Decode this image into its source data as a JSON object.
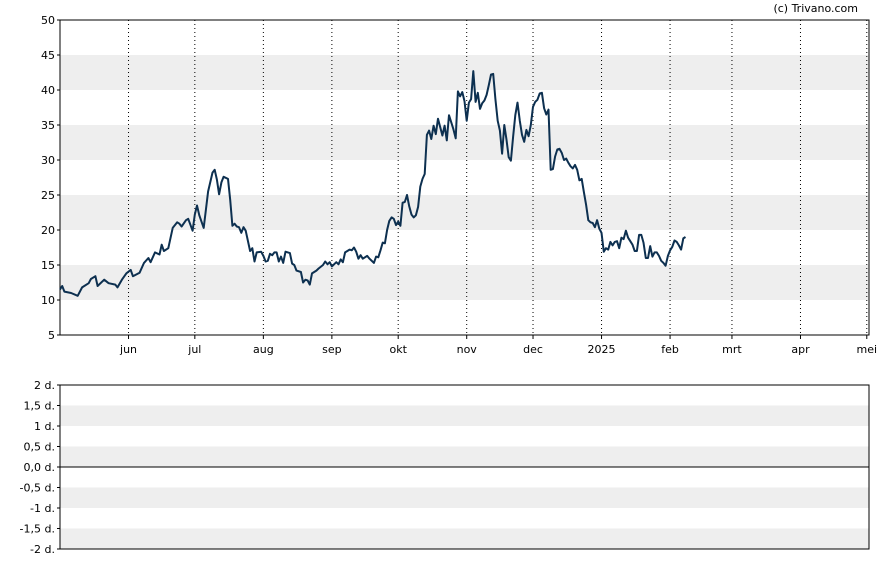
{
  "credit": "(c) Trivano.com",
  "chart_data": [
    {
      "type": "line",
      "title": "",
      "xlabel": "",
      "ylabel": "",
      "ylim": [
        5,
        50
      ],
      "yticks": [
        "5",
        "10",
        "15",
        "20",
        "25",
        "30",
        "35",
        "40",
        "45",
        "50"
      ],
      "xticks": [
        "jun",
        "jul",
        "aug",
        "sep",
        "okt",
        "nov",
        "dec",
        "2025",
        "feb",
        "mrt",
        "apr",
        "mei"
      ],
      "xlim": [
        0,
        366
      ],
      "xtick_positions": [
        31,
        61,
        92,
        123,
        153,
        184,
        214,
        245,
        276,
        304,
        335,
        365
      ],
      "grid": "alternating horizontal bands, dotted vertical month lines",
      "line_color": "#0d3050",
      "series": [
        {
          "values": [
            [
              0,
              11.5
            ],
            [
              1,
              12.0
            ],
            [
              2,
              11.2
            ],
            [
              5,
              11.0
            ],
            [
              8,
              10.6
            ],
            [
              10,
              11.8
            ],
            [
              13,
              12.4
            ],
            [
              14,
              13.0
            ],
            [
              16,
              13.4
            ],
            [
              17,
              12.0
            ],
            [
              20,
              12.9
            ],
            [
              22,
              12.4
            ],
            [
              25,
              12.2
            ],
            [
              26,
              11.8
            ],
            [
              28,
              12.9
            ],
            [
              30,
              13.8
            ],
            [
              32,
              14.3
            ],
            [
              33,
              13.4
            ],
            [
              36,
              13.9
            ],
            [
              38,
              15.3
            ],
            [
              40,
              16.0
            ],
            [
              41,
              15.4
            ],
            [
              43,
              16.8
            ],
            [
              45,
              16.5
            ],
            [
              46,
              17.9
            ],
            [
              47,
              17.0
            ],
            [
              49,
              17.4
            ],
            [
              51,
              20.3
            ],
            [
              53,
              21.1
            ],
            [
              54,
              20.9
            ],
            [
              55,
              20.5
            ],
            [
              57,
              21.4
            ],
            [
              58,
              21.6
            ],
            [
              60,
              19.9
            ],
            [
              61,
              22.2
            ],
            [
              62,
              23.5
            ],
            [
              63,
              22.1
            ],
            [
              65,
              20.3
            ],
            [
              66,
              22.9
            ],
            [
              67,
              25.5
            ],
            [
              69,
              28.2
            ],
            [
              70,
              28.6
            ],
            [
              71,
              27.2
            ],
            [
              72,
              25.1
            ],
            [
              73,
              26.8
            ],
            [
              74,
              27.6
            ],
            [
              76,
              27.3
            ],
            [
              77,
              24.3
            ],
            [
              78,
              20.6
            ],
            [
              79,
              20.9
            ],
            [
              80,
              20.5
            ],
            [
              81,
              20.4
            ],
            [
              82,
              19.6
            ],
            [
              83,
              20.4
            ],
            [
              84,
              19.9
            ],
            [
              86,
              17.0
            ],
            [
              87,
              17.4
            ],
            [
              88,
              15.5
            ],
            [
              89,
              16.8
            ],
            [
              91,
              16.9
            ],
            [
              92,
              16.3
            ],
            [
              93,
              15.5
            ],
            [
              94,
              15.6
            ],
            [
              95,
              16.6
            ],
            [
              96,
              16.4
            ],
            [
              97,
              16.8
            ],
            [
              98,
              16.8
            ],
            [
              99,
              15.5
            ],
            [
              100,
              16.2
            ],
            [
              101,
              15.3
            ],
            [
              102,
              16.9
            ],
            [
              104,
              16.7
            ],
            [
              105,
              15.2
            ],
            [
              106,
              15.0
            ],
            [
              107,
              14.2
            ],
            [
              109,
              14.0
            ],
            [
              110,
              12.5
            ],
            [
              111,
              12.9
            ],
            [
              112,
              12.8
            ],
            [
              113,
              12.2
            ],
            [
              114,
              13.8
            ],
            [
              116,
              14.2
            ],
            [
              117,
              14.5
            ],
            [
              119,
              15.0
            ],
            [
              120,
              15.5
            ],
            [
              121,
              15.1
            ],
            [
              122,
              15.4
            ],
            [
              123,
              14.8
            ],
            [
              125,
              15.4
            ],
            [
              126,
              15.1
            ],
            [
              127,
              15.8
            ],
            [
              128,
              15.4
            ],
            [
              129,
              16.8
            ],
            [
              131,
              17.2
            ],
            [
              132,
              17.1
            ],
            [
              133,
              17.5
            ],
            [
              134,
              16.9
            ],
            [
              135,
              15.9
            ],
            [
              136,
              16.4
            ],
            [
              137,
              15.9
            ],
            [
              139,
              16.3
            ],
            [
              140,
              15.9
            ],
            [
              142,
              15.3
            ],
            [
              143,
              16.2
            ],
            [
              144,
              16.1
            ],
            [
              145,
              17.1
            ],
            [
              146,
              18.2
            ],
            [
              147,
              18.1
            ],
            [
              148,
              20.0
            ],
            [
              149,
              21.3
            ],
            [
              150,
              21.8
            ],
            [
              151,
              21.6
            ],
            [
              152,
              20.7
            ],
            [
              153,
              21.2
            ],
            [
              154,
              20.6
            ],
            [
              155,
              23.9
            ],
            [
              156,
              24.0
            ],
            [
              157,
              25.0
            ],
            [
              158,
              23.4
            ],
            [
              159,
              22.2
            ],
            [
              160,
              21.8
            ],
            [
              161,
              22.1
            ],
            [
              162,
              23.3
            ],
            [
              163,
              26.2
            ],
            [
              164,
              27.3
            ],
            [
              165,
              28.0
            ],
            [
              166,
              33.6
            ],
            [
              167,
              34.2
            ],
            [
              168,
              33.0
            ],
            [
              169,
              34.9
            ],
            [
              170,
              33.7
            ],
            [
              171,
              35.9
            ],
            [
              172,
              34.7
            ],
            [
              173,
              33.5
            ],
            [
              174,
              34.9
            ],
            [
              175,
              32.8
            ],
            [
              176,
              36.4
            ],
            [
              177,
              35.4
            ],
            [
              178,
              34.4
            ],
            [
              179,
              33.1
            ],
            [
              180,
              39.8
            ],
            [
              181,
              39.1
            ],
            [
              182,
              39.7
            ],
            [
              183,
              38.4
            ],
            [
              184,
              35.6
            ],
            [
              185,
              38.2
            ],
            [
              186,
              38.7
            ],
            [
              187,
              42.7
            ],
            [
              188,
              38.3
            ],
            [
              189,
              39.6
            ],
            [
              190,
              37.3
            ],
            [
              191,
              38.1
            ],
            [
              192,
              38.5
            ],
            [
              193,
              39.3
            ],
            [
              194,
              40.7
            ],
            [
              195,
              42.2
            ],
            [
              196,
              42.3
            ],
            [
              197,
              38.7
            ],
            [
              198,
              35.6
            ],
            [
              199,
              34.2
            ],
            [
              200,
              30.9
            ],
            [
              201,
              35.0
            ],
            [
              202,
              32.9
            ],
            [
              203,
              30.4
            ],
            [
              204,
              29.9
            ],
            [
              205,
              33.3
            ],
            [
              206,
              36.4
            ],
            [
              207,
              38.2
            ],
            [
              208,
              35.6
            ],
            [
              209,
              33.6
            ],
            [
              210,
              32.6
            ],
            [
              211,
              34.3
            ],
            [
              212,
              33.4
            ],
            [
              213,
              35.0
            ],
            [
              214,
              37.6
            ],
            [
              215,
              38.3
            ],
            [
              216,
              38.6
            ],
            [
              217,
              39.5
            ],
            [
              218,
              39.6
            ],
            [
              219,
              37.4
            ],
            [
              220,
              36.5
            ],
            [
              221,
              37.2
            ],
            [
              222,
              28.6
            ],
            [
              223,
              28.7
            ],
            [
              224,
              30.5
            ],
            [
              225,
              31.5
            ],
            [
              226,
              31.6
            ],
            [
              227,
              31.0
            ],
            [
              228,
              30.0
            ],
            [
              229,
              30.2
            ],
            [
              230,
              29.6
            ],
            [
              231,
              29.1
            ],
            [
              232,
              28.8
            ],
            [
              233,
              29.3
            ],
            [
              234,
              28.6
            ],
            [
              235,
              27.1
            ],
            [
              236,
              27.3
            ],
            [
              237,
              25.4
            ],
            [
              238,
              23.6
            ],
            [
              239,
              21.4
            ],
            [
              240,
              21.1
            ],
            [
              241,
              21.0
            ],
            [
              242,
              20.4
            ],
            [
              243,
              21.4
            ],
            [
              244,
              20.2
            ],
            [
              245,
              19.6
            ],
            [
              246,
              16.9
            ],
            [
              247,
              17.4
            ],
            [
              248,
              17.2
            ],
            [
              249,
              18.3
            ],
            [
              250,
              17.8
            ],
            [
              251,
              18.3
            ],
            [
              252,
              18.4
            ],
            [
              253,
              17.4
            ],
            [
              254,
              18.9
            ],
            [
              255,
              18.7
            ],
            [
              256,
              19.9
            ],
            [
              257,
              18.9
            ],
            [
              258,
              18.4
            ],
            [
              259,
              17.9
            ],
            [
              260,
              17.0
            ],
            [
              261,
              17.0
            ],
            [
              262,
              19.3
            ],
            [
              263,
              19.3
            ],
            [
              264,
              18.2
            ],
            [
              265,
              16.0
            ],
            [
              266,
              16.0
            ],
            [
              267,
              17.7
            ],
            [
              268,
              16.2
            ],
            [
              269,
              16.8
            ],
            [
              270,
              16.8
            ],
            [
              271,
              16.3
            ],
            [
              272,
              15.6
            ],
            [
              273,
              15.3
            ],
            [
              274,
              14.9
            ],
            [
              275,
              16.3
            ],
            [
              276,
              17.1
            ],
            [
              277,
              17.6
            ],
            [
              278,
              18.5
            ],
            [
              279,
              18.3
            ],
            [
              280,
              17.8
            ],
            [
              281,
              17.2
            ],
            [
              282,
              18.8
            ],
            [
              283,
              19.0
            ]
          ]
        }
      ]
    },
    {
      "type": "line",
      "title": "",
      "xlabel": "",
      "ylabel": "",
      "ylim": [
        -2,
        2
      ],
      "yticks": [
        "-2 d.",
        "-1,5 d.",
        "-1 d.",
        "-0,5 d.",
        "0,0 d.",
        "0,5 d.",
        "1 d.",
        "1,5 d.",
        "2 d."
      ],
      "grid": "alternating horizontal bands",
      "zero_line": true,
      "series": []
    }
  ]
}
